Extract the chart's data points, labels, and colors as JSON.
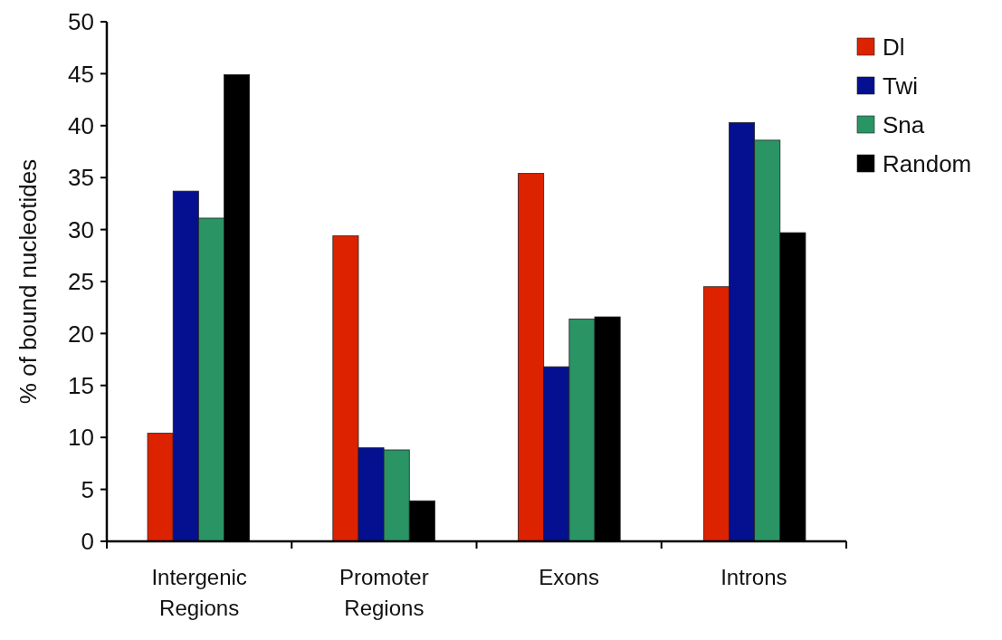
{
  "chart_data": {
    "type": "bar",
    "ylabel": "% of bound nucleotides",
    "categories": [
      "Intergenic Regions",
      "Promoter Regions",
      "Exons",
      "Introns"
    ],
    "series": [
      {
        "name": "Dl",
        "color": "#dd2200",
        "values": [
          10.4,
          29.4,
          35.4,
          24.5
        ]
      },
      {
        "name": "Twi",
        "color": "#041090",
        "values": [
          33.7,
          9.0,
          16.8,
          40.3
        ]
      },
      {
        "name": "Sna",
        "color": "#2a9465",
        "values": [
          31.1,
          8.8,
          21.4,
          38.6
        ]
      },
      {
        "name": "Random",
        "color": "#000000",
        "values": [
          44.9,
          3.9,
          21.6,
          29.7
        ]
      }
    ],
    "ylim": [
      0,
      50
    ],
    "yticks": [
      0,
      5,
      10,
      15,
      20,
      25,
      30,
      35,
      40,
      45,
      50
    ],
    "grid": false,
    "legend": "top right"
  }
}
